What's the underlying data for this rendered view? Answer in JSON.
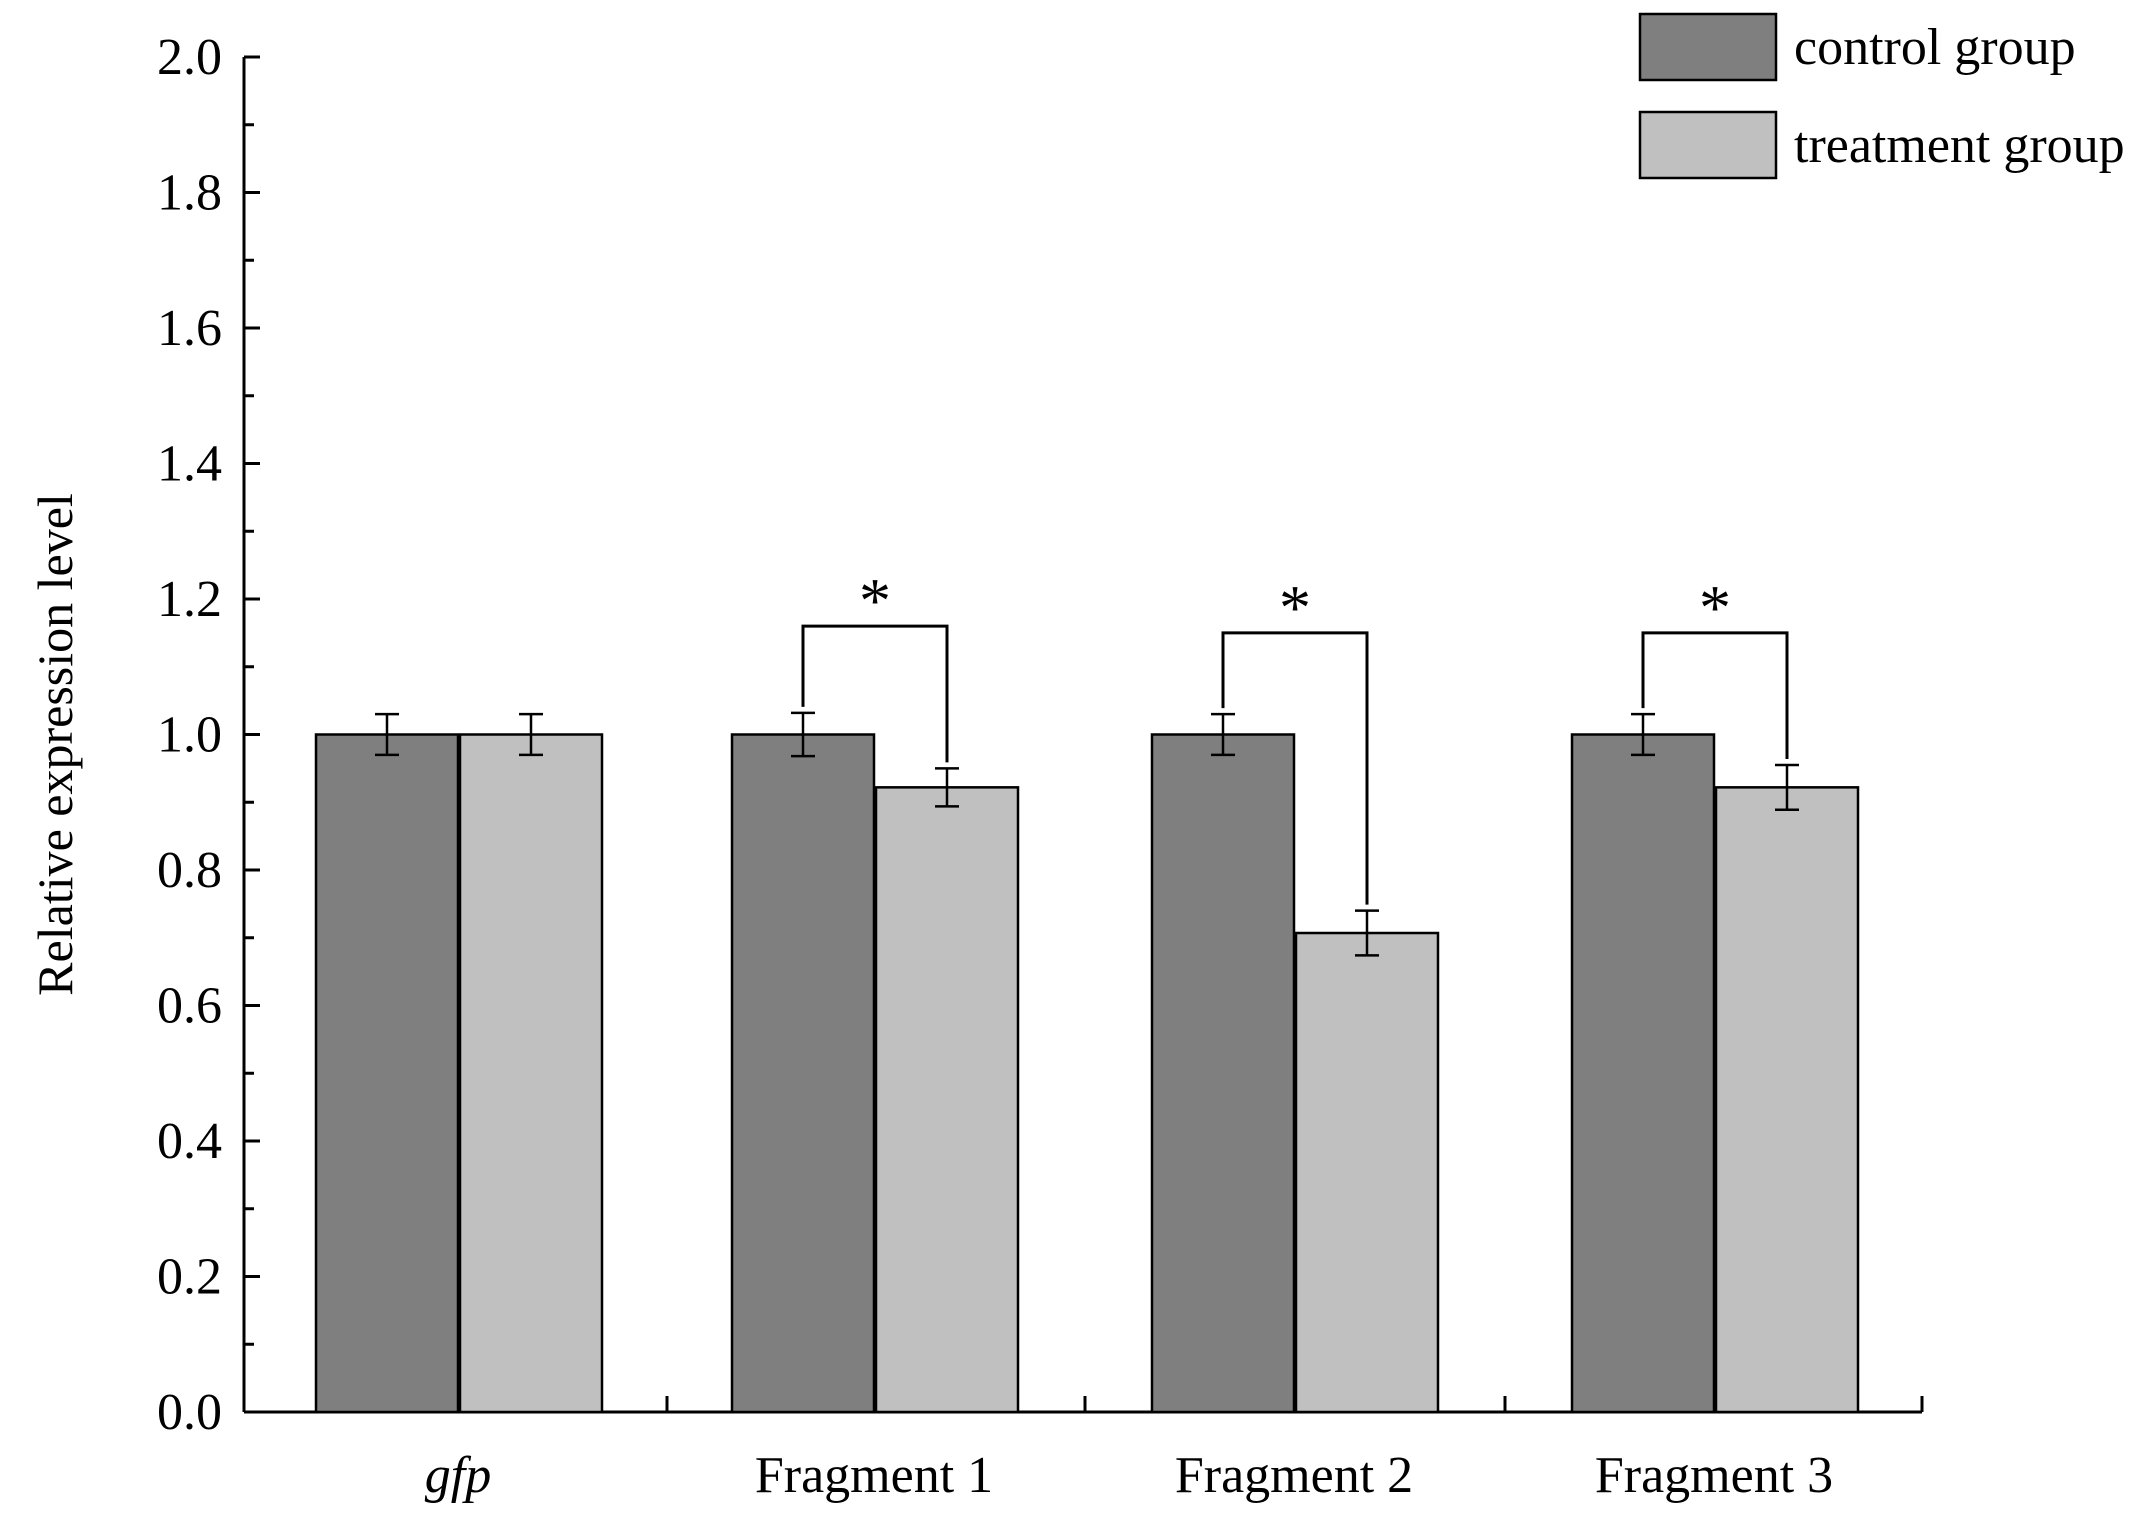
{
  "chart_data": {
    "type": "bar",
    "title": "",
    "xlabel": "",
    "ylabel": "Relative expression level",
    "ylim": [
      0,
      2.0
    ],
    "y_major_step": 0.2,
    "y_minor_step": 0.1,
    "y_tick_labels": [
      "0.0",
      "0.2",
      "0.4",
      "0.6",
      "0.8",
      "1.0",
      "1.2",
      "1.4",
      "1.6",
      "1.8",
      "2.0"
    ],
    "categories": [
      "gfp",
      "Fragment 1",
      "Fragment 2",
      "Fragment 3"
    ],
    "italic_categories": [
      "gfp"
    ],
    "series": [
      {
        "name": "control group",
        "color": "#7f7f7f",
        "values": [
          1.0,
          1.0,
          1.0,
          1.0
        ],
        "errors": [
          0.03,
          0.032,
          0.03,
          0.03
        ]
      },
      {
        "name": "treatment group",
        "color": "#c0c0c0",
        "values": [
          1.0,
          0.922,
          0.707,
          0.922
        ],
        "errors": [
          0.03,
          0.028,
          0.033,
          0.033
        ]
      }
    ],
    "significance": [
      {
        "category": "Fragment 1",
        "label": "*",
        "bracket_level": 1.16
      },
      {
        "category": "Fragment 2",
        "label": "*",
        "bracket_level": 1.15
      },
      {
        "category": "Fragment 3",
        "label": "*",
        "bracket_level": 1.15
      }
    ],
    "legend": {
      "position": "top-right",
      "entries": [
        "control group",
        "treatment group"
      ]
    },
    "grid": false
  }
}
